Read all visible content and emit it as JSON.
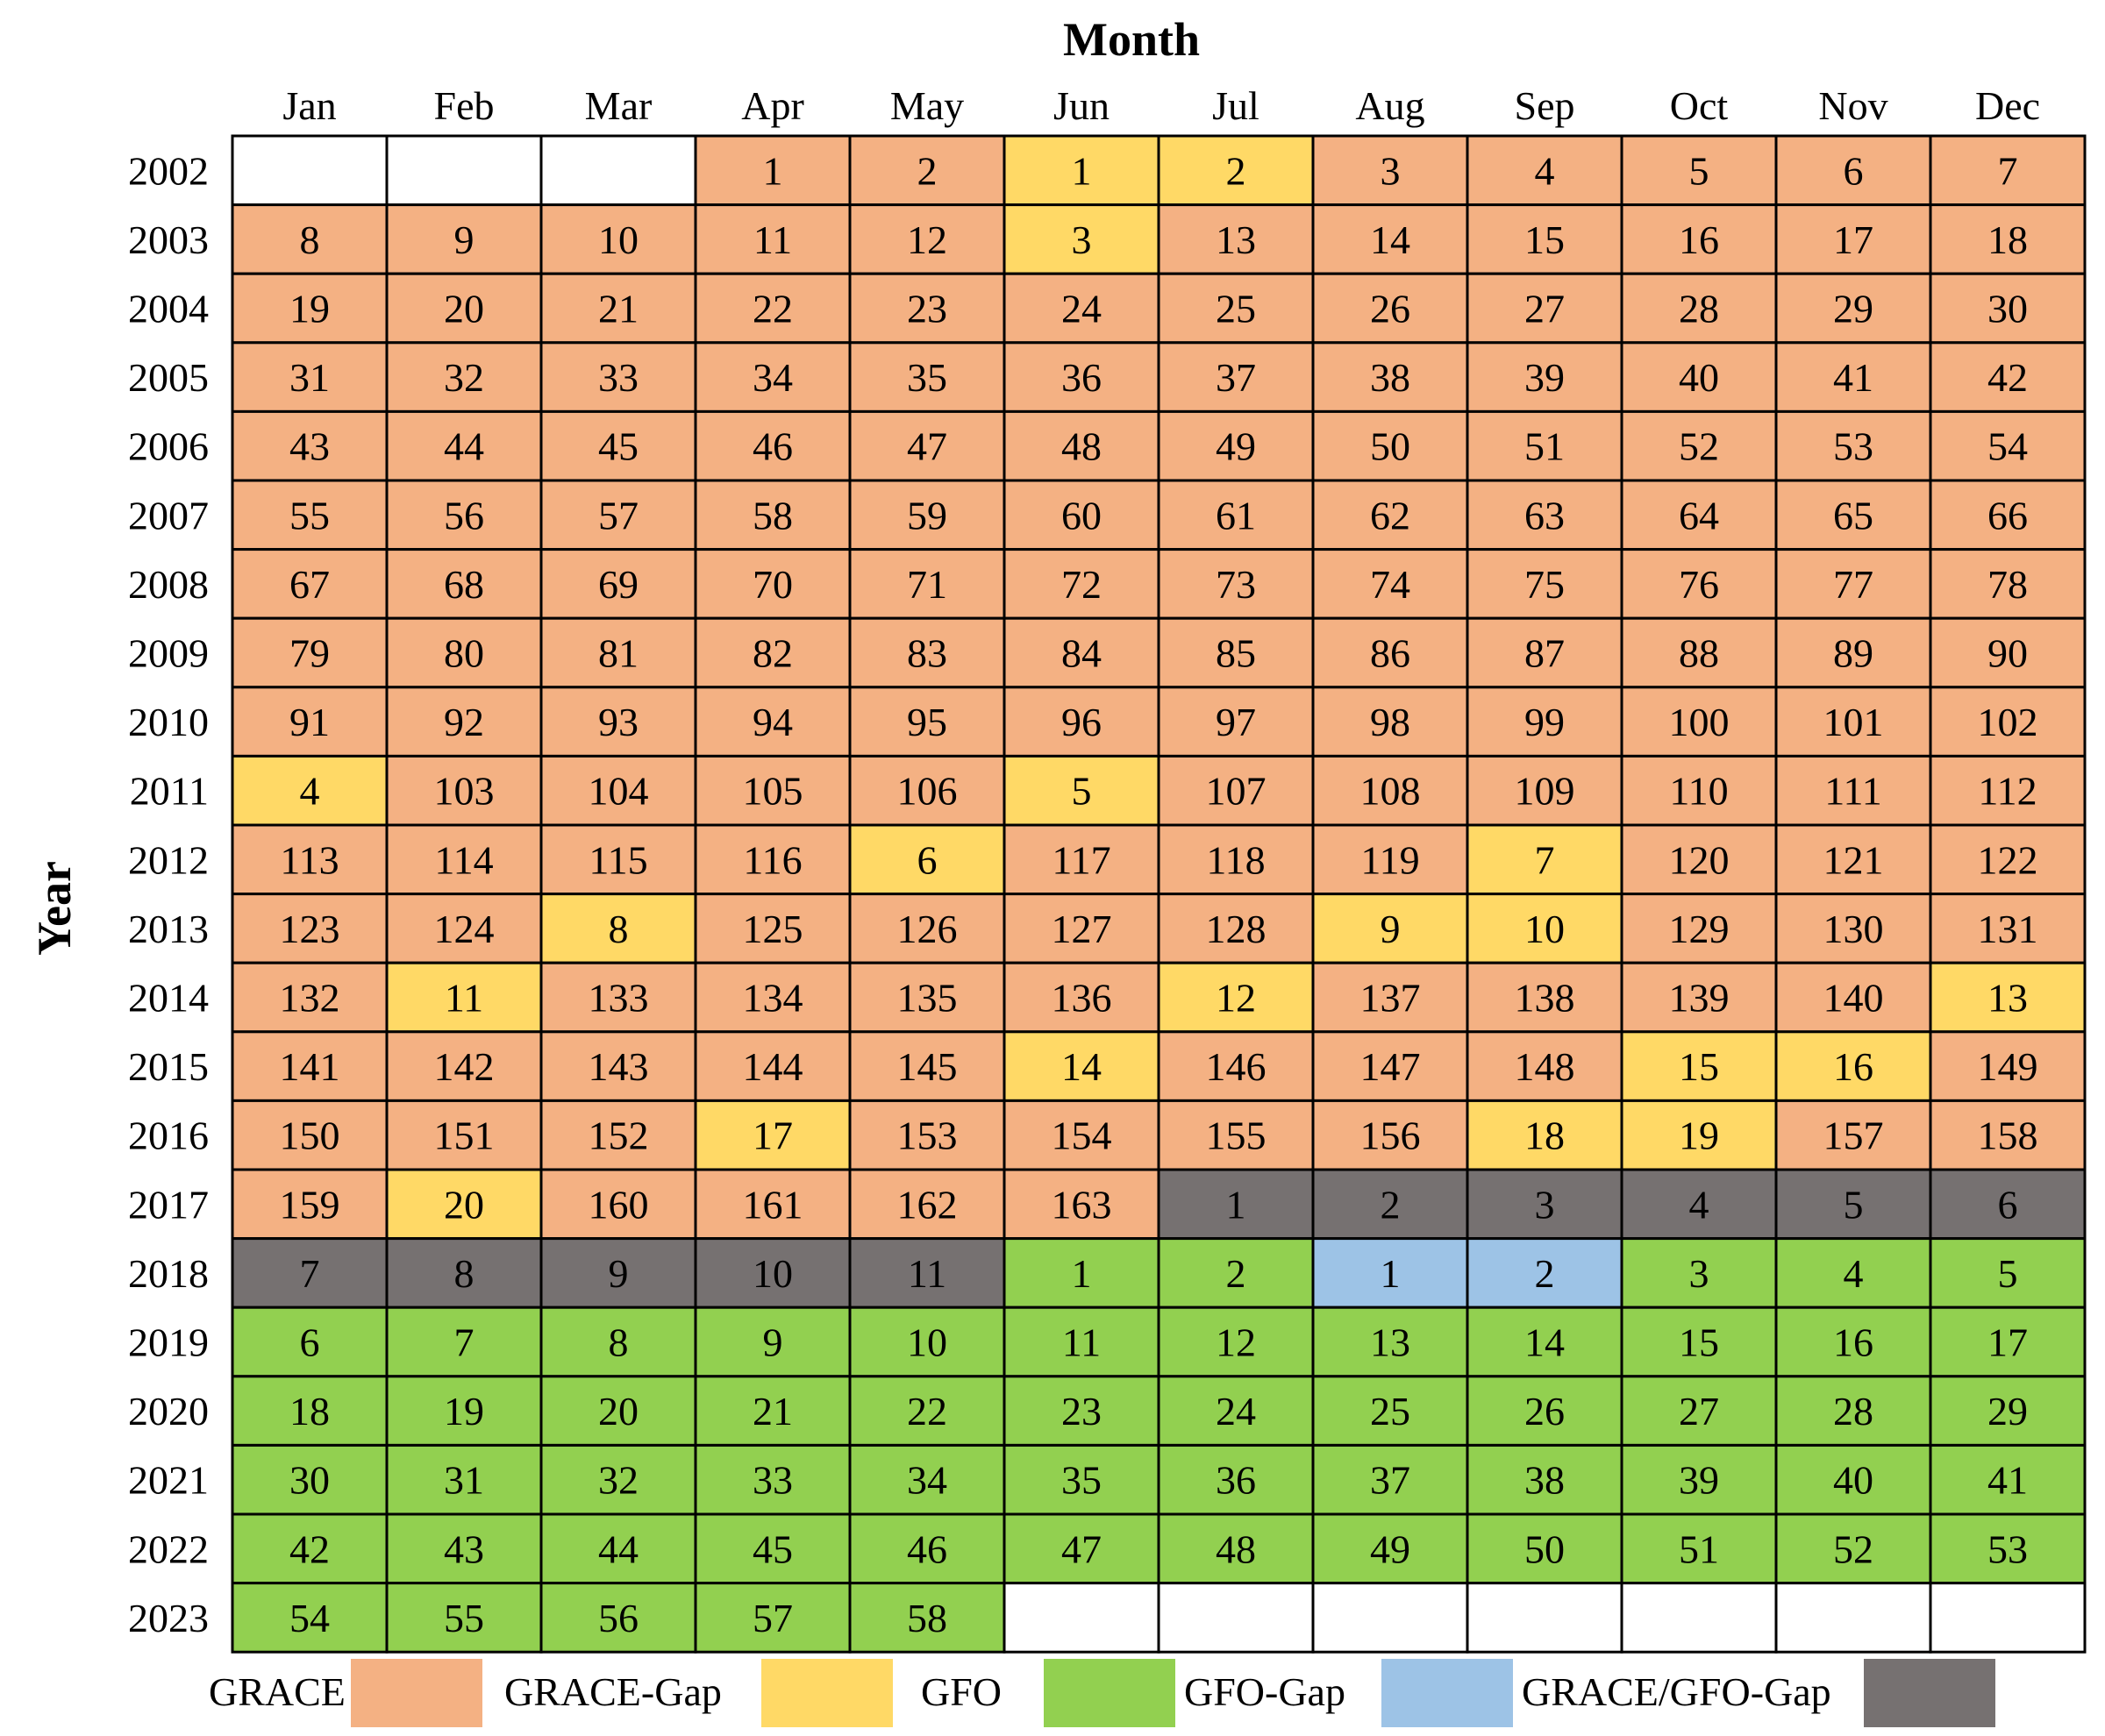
{
  "chart_data": {
    "type": "table",
    "xlabel": "Month",
    "ylabel": "Year",
    "months": [
      "Jan",
      "Feb",
      "Mar",
      "Apr",
      "May",
      "Jun",
      "Jul",
      "Aug",
      "Sep",
      "Oct",
      "Nov",
      "Dec"
    ],
    "years": [
      "2002",
      "2003",
      "2004",
      "2005",
      "2006",
      "2007",
      "2008",
      "2009",
      "2010",
      "2011",
      "2012",
      "2013",
      "2014",
      "2015",
      "2016",
      "2017",
      "2018",
      "2019",
      "2020",
      "2021",
      "2022",
      "2023"
    ],
    "categories": {
      "GRACE": {
        "label": "GRACE",
        "color": "#F4B183"
      },
      "GRACE-Gap": {
        "label": "GRACE-Gap",
        "color": "#FFD966"
      },
      "GFO": {
        "label": "GFO",
        "color": "#92D050"
      },
      "GFO-Gap": {
        "label": "GFO-Gap",
        "color": "#9DC3E6"
      },
      "GRACE/GFO-Gap": {
        "label": "GRACE/GFO-Gap",
        "color": "#767171"
      }
    },
    "legend_order": [
      "GRACE",
      "GRACE-Gap",
      "GFO",
      "GFO-Gap",
      "GRACE/GFO-Gap"
    ],
    "rows": [
      {
        "year": "2002",
        "cells": [
          null,
          null,
          null,
          [
            "GRACE",
            "1"
          ],
          [
            "GRACE",
            "2"
          ],
          [
            "GRACE-Gap",
            "1"
          ],
          [
            "GRACE-Gap",
            "2"
          ],
          [
            "GRACE",
            "3"
          ],
          [
            "GRACE",
            "4"
          ],
          [
            "GRACE",
            "5"
          ],
          [
            "GRACE",
            "6"
          ],
          [
            "GRACE",
            "7"
          ]
        ]
      },
      {
        "year": "2003",
        "cells": [
          [
            "GRACE",
            "8"
          ],
          [
            "GRACE",
            "9"
          ],
          [
            "GRACE",
            "10"
          ],
          [
            "GRACE",
            "11"
          ],
          [
            "GRACE",
            "12"
          ],
          [
            "GRACE-Gap",
            "3"
          ],
          [
            "GRACE",
            "13"
          ],
          [
            "GRACE",
            "14"
          ],
          [
            "GRACE",
            "15"
          ],
          [
            "GRACE",
            "16"
          ],
          [
            "GRACE",
            "17"
          ],
          [
            "GRACE",
            "18"
          ]
        ]
      },
      {
        "year": "2004",
        "cells": [
          [
            "GRACE",
            "19"
          ],
          [
            "GRACE",
            "20"
          ],
          [
            "GRACE",
            "21"
          ],
          [
            "GRACE",
            "22"
          ],
          [
            "GRACE",
            "23"
          ],
          [
            "GRACE",
            "24"
          ],
          [
            "GRACE",
            "25"
          ],
          [
            "GRACE",
            "26"
          ],
          [
            "GRACE",
            "27"
          ],
          [
            "GRACE",
            "28"
          ],
          [
            "GRACE",
            "29"
          ],
          [
            "GRACE",
            "30"
          ]
        ]
      },
      {
        "year": "2005",
        "cells": [
          [
            "GRACE",
            "31"
          ],
          [
            "GRACE",
            "32"
          ],
          [
            "GRACE",
            "33"
          ],
          [
            "GRACE",
            "34"
          ],
          [
            "GRACE",
            "35"
          ],
          [
            "GRACE",
            "36"
          ],
          [
            "GRACE",
            "37"
          ],
          [
            "GRACE",
            "38"
          ],
          [
            "GRACE",
            "39"
          ],
          [
            "GRACE",
            "40"
          ],
          [
            "GRACE",
            "41"
          ],
          [
            "GRACE",
            "42"
          ]
        ]
      },
      {
        "year": "2006",
        "cells": [
          [
            "GRACE",
            "43"
          ],
          [
            "GRACE",
            "44"
          ],
          [
            "GRACE",
            "45"
          ],
          [
            "GRACE",
            "46"
          ],
          [
            "GRACE",
            "47"
          ],
          [
            "GRACE",
            "48"
          ],
          [
            "GRACE",
            "49"
          ],
          [
            "GRACE",
            "50"
          ],
          [
            "GRACE",
            "51"
          ],
          [
            "GRACE",
            "52"
          ],
          [
            "GRACE",
            "53"
          ],
          [
            "GRACE",
            "54"
          ]
        ]
      },
      {
        "year": "2007",
        "cells": [
          [
            "GRACE",
            "55"
          ],
          [
            "GRACE",
            "56"
          ],
          [
            "GRACE",
            "57"
          ],
          [
            "GRACE",
            "58"
          ],
          [
            "GRACE",
            "59"
          ],
          [
            "GRACE",
            "60"
          ],
          [
            "GRACE",
            "61"
          ],
          [
            "GRACE",
            "62"
          ],
          [
            "GRACE",
            "63"
          ],
          [
            "GRACE",
            "64"
          ],
          [
            "GRACE",
            "65"
          ],
          [
            "GRACE",
            "66"
          ]
        ]
      },
      {
        "year": "2008",
        "cells": [
          [
            "GRACE",
            "67"
          ],
          [
            "GRACE",
            "68"
          ],
          [
            "GRACE",
            "69"
          ],
          [
            "GRACE",
            "70"
          ],
          [
            "GRACE",
            "71"
          ],
          [
            "GRACE",
            "72"
          ],
          [
            "GRACE",
            "73"
          ],
          [
            "GRACE",
            "74"
          ],
          [
            "GRACE",
            "75"
          ],
          [
            "GRACE",
            "76"
          ],
          [
            "GRACE",
            "77"
          ],
          [
            "GRACE",
            "78"
          ]
        ]
      },
      {
        "year": "2009",
        "cells": [
          [
            "GRACE",
            "79"
          ],
          [
            "GRACE",
            "80"
          ],
          [
            "GRACE",
            "81"
          ],
          [
            "GRACE",
            "82"
          ],
          [
            "GRACE",
            "83"
          ],
          [
            "GRACE",
            "84"
          ],
          [
            "GRACE",
            "85"
          ],
          [
            "GRACE",
            "86"
          ],
          [
            "GRACE",
            "87"
          ],
          [
            "GRACE",
            "88"
          ],
          [
            "GRACE",
            "89"
          ],
          [
            "GRACE",
            "90"
          ]
        ]
      },
      {
        "year": "2010",
        "cells": [
          [
            "GRACE",
            "91"
          ],
          [
            "GRACE",
            "92"
          ],
          [
            "GRACE",
            "93"
          ],
          [
            "GRACE",
            "94"
          ],
          [
            "GRACE",
            "95"
          ],
          [
            "GRACE",
            "96"
          ],
          [
            "GRACE",
            "97"
          ],
          [
            "GRACE",
            "98"
          ],
          [
            "GRACE",
            "99"
          ],
          [
            "GRACE",
            "100"
          ],
          [
            "GRACE",
            "101"
          ],
          [
            "GRACE",
            "102"
          ]
        ]
      },
      {
        "year": "2011",
        "cells": [
          [
            "GRACE-Gap",
            "4"
          ],
          [
            "GRACE",
            "103"
          ],
          [
            "GRACE",
            "104"
          ],
          [
            "GRACE",
            "105"
          ],
          [
            "GRACE",
            "106"
          ],
          [
            "GRACE-Gap",
            "5"
          ],
          [
            "GRACE",
            "107"
          ],
          [
            "GRACE",
            "108"
          ],
          [
            "GRACE",
            "109"
          ],
          [
            "GRACE",
            "110"
          ],
          [
            "GRACE",
            "111"
          ],
          [
            "GRACE",
            "112"
          ]
        ]
      },
      {
        "year": "2012",
        "cells": [
          [
            "GRACE",
            "113"
          ],
          [
            "GRACE",
            "114"
          ],
          [
            "GRACE",
            "115"
          ],
          [
            "GRACE",
            "116"
          ],
          [
            "GRACE-Gap",
            "6"
          ],
          [
            "GRACE",
            "117"
          ],
          [
            "GRACE",
            "118"
          ],
          [
            "GRACE",
            "119"
          ],
          [
            "GRACE-Gap",
            "7"
          ],
          [
            "GRACE",
            "120"
          ],
          [
            "GRACE",
            "121"
          ],
          [
            "GRACE",
            "122"
          ]
        ]
      },
      {
        "year": "2013",
        "cells": [
          [
            "GRACE",
            "123"
          ],
          [
            "GRACE",
            "124"
          ],
          [
            "GRACE-Gap",
            "8"
          ],
          [
            "GRACE",
            "125"
          ],
          [
            "GRACE",
            "126"
          ],
          [
            "GRACE",
            "127"
          ],
          [
            "GRACE",
            "128"
          ],
          [
            "GRACE-Gap",
            "9"
          ],
          [
            "GRACE-Gap",
            "10"
          ],
          [
            "GRACE",
            "129"
          ],
          [
            "GRACE",
            "130"
          ],
          [
            "GRACE",
            "131"
          ]
        ]
      },
      {
        "year": "2014",
        "cells": [
          [
            "GRACE",
            "132"
          ],
          [
            "GRACE-Gap",
            "11"
          ],
          [
            "GRACE",
            "133"
          ],
          [
            "GRACE",
            "134"
          ],
          [
            "GRACE",
            "135"
          ],
          [
            "GRACE",
            "136"
          ],
          [
            "GRACE-Gap",
            "12"
          ],
          [
            "GRACE",
            "137"
          ],
          [
            "GRACE",
            "138"
          ],
          [
            "GRACE",
            "139"
          ],
          [
            "GRACE",
            "140"
          ],
          [
            "GRACE-Gap",
            "13"
          ]
        ]
      },
      {
        "year": "2015",
        "cells": [
          [
            "GRACE",
            "141"
          ],
          [
            "GRACE",
            "142"
          ],
          [
            "GRACE",
            "143"
          ],
          [
            "GRACE",
            "144"
          ],
          [
            "GRACE",
            "145"
          ],
          [
            "GRACE-Gap",
            "14"
          ],
          [
            "GRACE",
            "146"
          ],
          [
            "GRACE",
            "147"
          ],
          [
            "GRACE",
            "148"
          ],
          [
            "GRACE-Gap",
            "15"
          ],
          [
            "GRACE-Gap",
            "16"
          ],
          [
            "GRACE",
            "149"
          ]
        ]
      },
      {
        "year": "2016",
        "cells": [
          [
            "GRACE",
            "150"
          ],
          [
            "GRACE",
            "151"
          ],
          [
            "GRACE",
            "152"
          ],
          [
            "GRACE-Gap",
            "17"
          ],
          [
            "GRACE",
            "153"
          ],
          [
            "GRACE",
            "154"
          ],
          [
            "GRACE",
            "155"
          ],
          [
            "GRACE",
            "156"
          ],
          [
            "GRACE-Gap",
            "18"
          ],
          [
            "GRACE-Gap",
            "19"
          ],
          [
            "GRACE",
            "157"
          ],
          [
            "GRACE",
            "158"
          ]
        ]
      },
      {
        "year": "2017",
        "cells": [
          [
            "GRACE",
            "159"
          ],
          [
            "GRACE-Gap",
            "20"
          ],
          [
            "GRACE",
            "160"
          ],
          [
            "GRACE",
            "161"
          ],
          [
            "GRACE",
            "162"
          ],
          [
            "GRACE",
            "163"
          ],
          [
            "GRACE/GFO-Gap",
            "1"
          ],
          [
            "GRACE/GFO-Gap",
            "2"
          ],
          [
            "GRACE/GFO-Gap",
            "3"
          ],
          [
            "GRACE/GFO-Gap",
            "4"
          ],
          [
            "GRACE/GFO-Gap",
            "5"
          ],
          [
            "GRACE/GFO-Gap",
            "6"
          ]
        ]
      },
      {
        "year": "2018",
        "cells": [
          [
            "GRACE/GFO-Gap",
            "7"
          ],
          [
            "GRACE/GFO-Gap",
            "8"
          ],
          [
            "GRACE/GFO-Gap",
            "9"
          ],
          [
            "GRACE/GFO-Gap",
            "10"
          ],
          [
            "GRACE/GFO-Gap",
            "11"
          ],
          [
            "GFO",
            "1"
          ],
          [
            "GFO",
            "2"
          ],
          [
            "GFO-Gap",
            "1"
          ],
          [
            "GFO-Gap",
            "2"
          ],
          [
            "GFO",
            "3"
          ],
          [
            "GFO",
            "4"
          ],
          [
            "GFO",
            "5"
          ]
        ]
      },
      {
        "year": "2019",
        "cells": [
          [
            "GFO",
            "6"
          ],
          [
            "GFO",
            "7"
          ],
          [
            "GFO",
            "8"
          ],
          [
            "GFO",
            "9"
          ],
          [
            "GFO",
            "10"
          ],
          [
            "GFO",
            "11"
          ],
          [
            "GFO",
            "12"
          ],
          [
            "GFO",
            "13"
          ],
          [
            "GFO",
            "14"
          ],
          [
            "GFO",
            "15"
          ],
          [
            "GFO",
            "16"
          ],
          [
            "GFO",
            "17"
          ]
        ]
      },
      {
        "year": "2020",
        "cells": [
          [
            "GFO",
            "18"
          ],
          [
            "GFO",
            "19"
          ],
          [
            "GFO",
            "20"
          ],
          [
            "GFO",
            "21"
          ],
          [
            "GFO",
            "22"
          ],
          [
            "GFO",
            "23"
          ],
          [
            "GFO",
            "24"
          ],
          [
            "GFO",
            "25"
          ],
          [
            "GFO",
            "26"
          ],
          [
            "GFO",
            "27"
          ],
          [
            "GFO",
            "28"
          ],
          [
            "GFO",
            "29"
          ]
        ]
      },
      {
        "year": "2021",
        "cells": [
          [
            "GFO",
            "30"
          ],
          [
            "GFO",
            "31"
          ],
          [
            "GFO",
            "32"
          ],
          [
            "GFO",
            "33"
          ],
          [
            "GFO",
            "34"
          ],
          [
            "GFO",
            "35"
          ],
          [
            "GFO",
            "36"
          ],
          [
            "GFO",
            "37"
          ],
          [
            "GFO",
            "38"
          ],
          [
            "GFO",
            "39"
          ],
          [
            "GFO",
            "40"
          ],
          [
            "GFO",
            "41"
          ]
        ]
      },
      {
        "year": "2022",
        "cells": [
          [
            "GFO",
            "42"
          ],
          [
            "GFO",
            "43"
          ],
          [
            "GFO",
            "44"
          ],
          [
            "GFO",
            "45"
          ],
          [
            "GFO",
            "46"
          ],
          [
            "GFO",
            "47"
          ],
          [
            "GFO",
            "48"
          ],
          [
            "GFO",
            "49"
          ],
          [
            "GFO",
            "50"
          ],
          [
            "GFO",
            "51"
          ],
          [
            "GFO",
            "52"
          ],
          [
            "GFO",
            "53"
          ]
        ]
      },
      {
        "year": "2023",
        "cells": [
          [
            "GFO",
            "54"
          ],
          [
            "GFO",
            "55"
          ],
          [
            "GFO",
            "56"
          ],
          [
            "GFO",
            "57"
          ],
          [
            "GFO",
            "58"
          ],
          null,
          null,
          null,
          null,
          null,
          null,
          null
        ]
      }
    ]
  }
}
